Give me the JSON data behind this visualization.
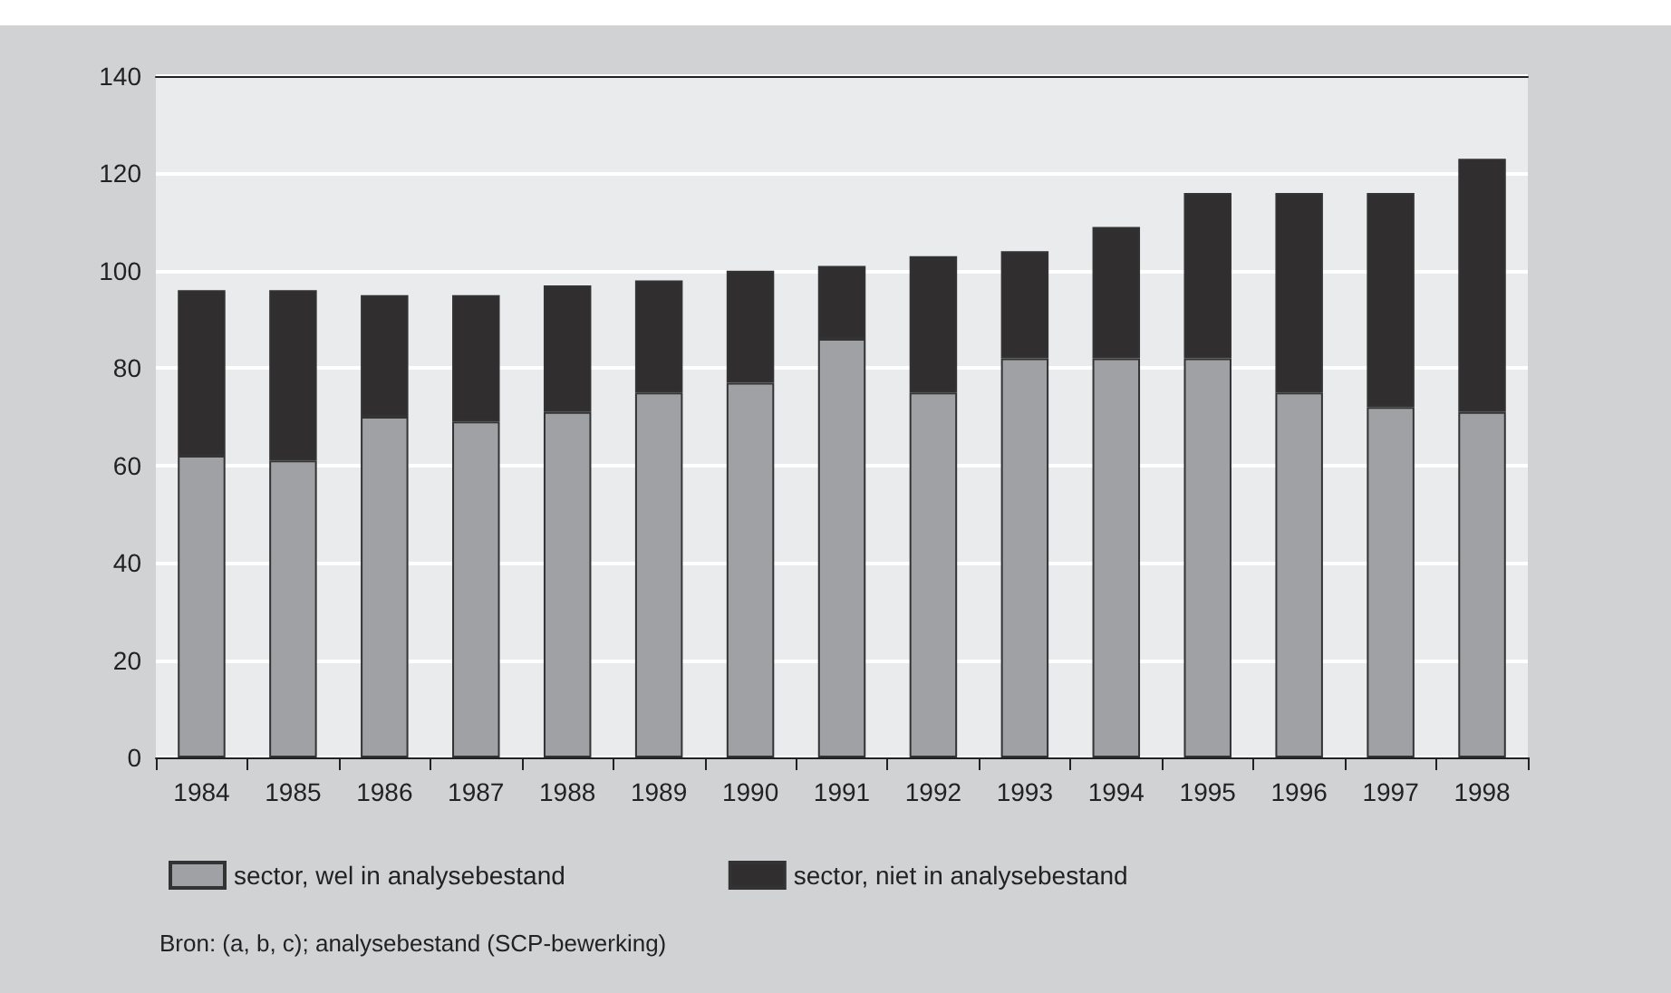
{
  "chart_data": {
    "type": "bar",
    "stacked": true,
    "categories": [
      "1984",
      "1985",
      "1986",
      "1987",
      "1988",
      "1989",
      "1990",
      "1991",
      "1992",
      "1993",
      "1994",
      "1995",
      "1996",
      "1997",
      "1998"
    ],
    "series": [
      {
        "name": "sector, wel in analysebestand",
        "color": "#a0a1a4",
        "values": [
          62,
          61,
          70,
          69,
          71,
          75,
          77,
          86,
          75,
          82,
          82,
          82,
          75,
          72,
          71
        ]
      },
      {
        "name": "sector, niet in analysebestand",
        "color": "#302e2f",
        "values": [
          34,
          35,
          25,
          26,
          26,
          23,
          23,
          15,
          28,
          22,
          27,
          34,
          41,
          44,
          52
        ]
      }
    ],
    "ylim": [
      0,
      140
    ],
    "yticks": [
      0,
      20,
      40,
      60,
      80,
      100,
      120,
      140
    ],
    "grid": "y",
    "legend": "bottom left",
    "annotations": [
      "Bron: (a, b, c); analysebestand (SCP-bewerking)"
    ]
  }
}
